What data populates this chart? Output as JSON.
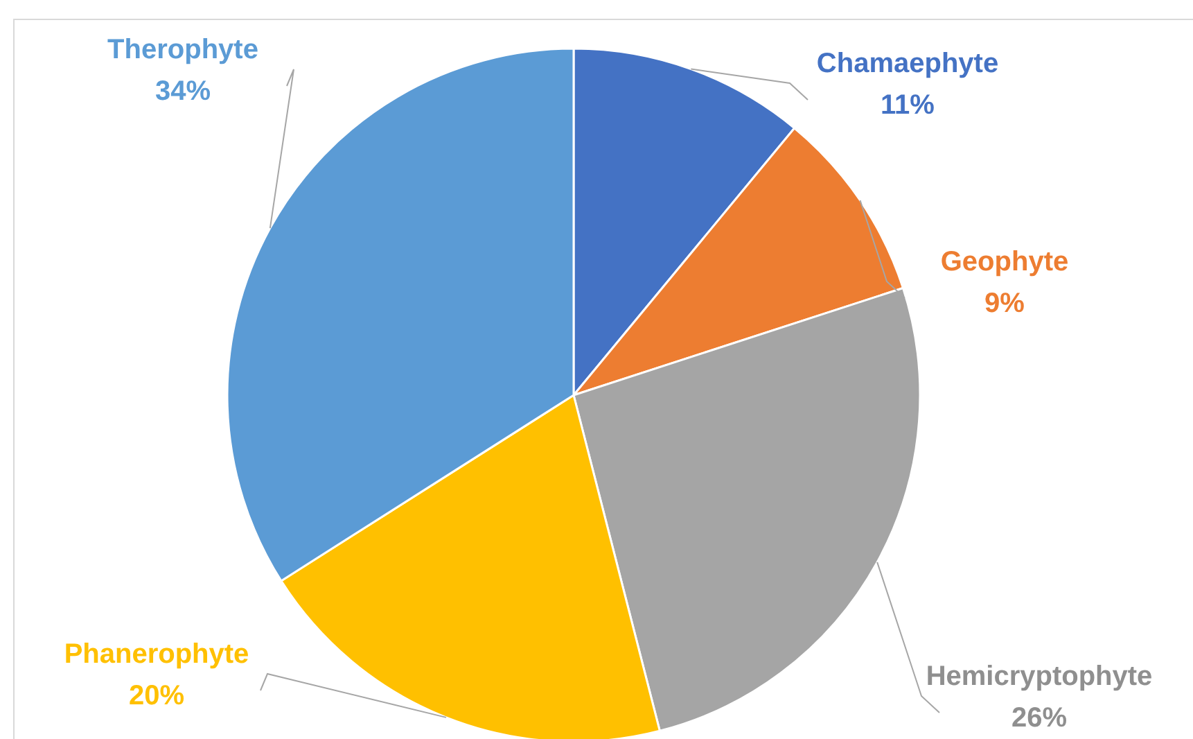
{
  "chart_data": {
    "type": "pie",
    "categories": [
      "Chamaephyte",
      "Geophyte",
      "Hemicryptophyte",
      "Phanerophyte",
      "Therophyte"
    ],
    "values": [
      11,
      9,
      26,
      20,
      34
    ],
    "value_labels": [
      "11%",
      "9%",
      "26%",
      "20%",
      "34%"
    ],
    "colors": [
      "#4472c4",
      "#ed7d31",
      "#a5a5a5",
      "#ffc000",
      "#5b9bd5"
    ]
  }
}
